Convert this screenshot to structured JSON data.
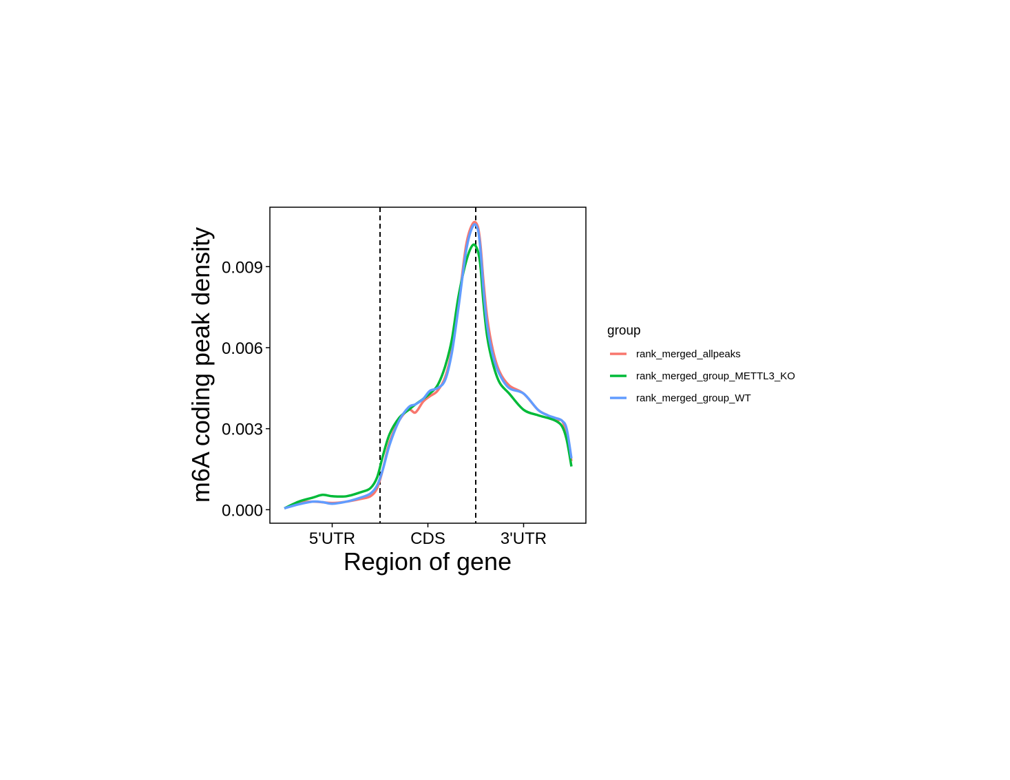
{
  "chart_data": {
    "type": "line",
    "xlabel": "Region of gene",
    "ylabel": "m6A coding peak density",
    "xlim": [
      0,
      3
    ],
    "ylim": [
      -0.0005,
      0.0112
    ],
    "region_labels": [
      {
        "label": "5'UTR",
        "x": 0.5
      },
      {
        "label": "CDS",
        "x": 1.5
      },
      {
        "label": "3'UTR",
        "x": 2.5
      }
    ],
    "boundaries": [
      1,
      2
    ],
    "y_ticks": [
      {
        "value": 0.0,
        "label": "0.000"
      },
      {
        "value": 0.003,
        "label": "0.003"
      },
      {
        "value": 0.006,
        "label": "0.006"
      },
      {
        "value": 0.009,
        "label": "0.009"
      }
    ],
    "grid": false,
    "legend": {
      "title": "group",
      "position": "right"
    },
    "series": [
      {
        "name": "rank_merged_allpeaks",
        "color": "#F8766D",
        "x": [
          0.0,
          0.15,
          0.3,
          0.5,
          0.65,
          0.8,
          0.9,
          0.97,
          1.03,
          1.1,
          1.2,
          1.3,
          1.37,
          1.45,
          1.52,
          1.6,
          1.68,
          1.75,
          1.82,
          1.9,
          1.97,
          2.02,
          2.05,
          2.08,
          2.12,
          2.18,
          2.25,
          2.35,
          2.5,
          2.65,
          2.75,
          2.83,
          2.9,
          2.95,
          3.0
        ],
        "y": [
          5e-05,
          0.00025,
          0.0003,
          0.00025,
          0.0003,
          0.0004,
          0.0005,
          0.0008,
          0.0015,
          0.0025,
          0.0033,
          0.0037,
          0.0036,
          0.004,
          0.0042,
          0.0044,
          0.0049,
          0.0059,
          0.0076,
          0.0098,
          0.0106,
          0.0105,
          0.0098,
          0.0085,
          0.0071,
          0.0059,
          0.0051,
          0.0046,
          0.0043,
          0.0037,
          0.0035,
          0.0033,
          0.0033,
          0.0028,
          0.0018
        ]
      },
      {
        "name": "rank_merged_group_METTL3_KO",
        "color": "#00BA38",
        "x": [
          0.0,
          0.15,
          0.3,
          0.4,
          0.5,
          0.65,
          0.8,
          0.9,
          0.97,
          1.03,
          1.1,
          1.2,
          1.3,
          1.37,
          1.45,
          1.52,
          1.6,
          1.68,
          1.75,
          1.82,
          1.9,
          1.97,
          2.02,
          2.05,
          2.08,
          2.12,
          2.18,
          2.25,
          2.35,
          2.5,
          2.65,
          2.75,
          2.83,
          2.9,
          2.95,
          3.0
        ],
        "y": [
          5e-05,
          0.0003,
          0.00045,
          0.00055,
          0.0005,
          0.0005,
          0.00065,
          0.0008,
          0.0012,
          0.002,
          0.0028,
          0.0034,
          0.0037,
          0.0039,
          0.0041,
          0.0043,
          0.0046,
          0.0053,
          0.0063,
          0.0079,
          0.0092,
          0.0098,
          0.0096,
          0.009,
          0.0077,
          0.0064,
          0.0054,
          0.0047,
          0.0043,
          0.0037,
          0.0035,
          0.0034,
          0.0033,
          0.0031,
          0.0026,
          0.0016
        ]
      },
      {
        "name": "rank_merged_group_WT",
        "color": "#619CFF",
        "x": [
          0.0,
          0.15,
          0.3,
          0.4,
          0.5,
          0.65,
          0.8,
          0.9,
          0.97,
          1.03,
          1.1,
          1.2,
          1.3,
          1.37,
          1.45,
          1.52,
          1.6,
          1.68,
          1.75,
          1.82,
          1.9,
          1.97,
          2.02,
          2.05,
          2.08,
          2.12,
          2.18,
          2.25,
          2.35,
          2.5,
          2.65,
          2.75,
          2.83,
          2.9,
          2.95,
          3.0
        ],
        "y": [
          5e-05,
          0.0002,
          0.0003,
          0.00028,
          0.00022,
          0.0003,
          0.00045,
          0.0006,
          0.0009,
          0.0015,
          0.0024,
          0.0033,
          0.0038,
          0.0039,
          0.0041,
          0.0044,
          0.0045,
          0.0048,
          0.0058,
          0.0075,
          0.0096,
          0.0105,
          0.0104,
          0.0096,
          0.0082,
          0.0068,
          0.0057,
          0.005,
          0.0045,
          0.0043,
          0.0037,
          0.0035,
          0.0034,
          0.0033,
          0.003,
          0.0019
        ]
      }
    ]
  }
}
